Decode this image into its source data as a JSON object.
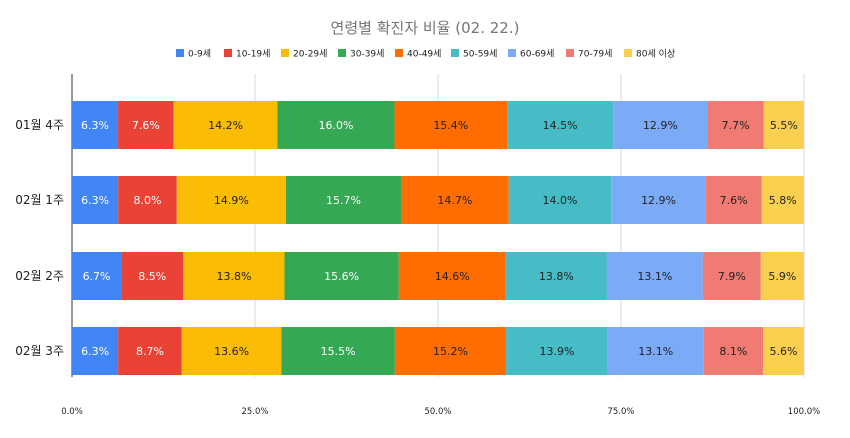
{
  "chart_data": {
    "type": "bar",
    "orientation": "horizontal",
    "stacked": "percent",
    "title": "연령별 확진자 비율 (02. 22.)",
    "xlabel": "",
    "ylabel": "",
    "xlim": [
      0,
      100
    ],
    "x_ticks": [
      "0.0%",
      "25.0%",
      "50.0%",
      "75.0%",
      "100.0%"
    ],
    "grid": true,
    "legend_position": "top",
    "categories": [
      "01월 4주",
      "02월 1주",
      "02월 2주",
      "02월 3주"
    ],
    "series": [
      {
        "name": "0-9세",
        "color": "#4285F4",
        "label_color": "#ffffff",
        "values": [
          6.3,
          6.3,
          6.7,
          6.3
        ]
      },
      {
        "name": "10-19세",
        "color": "#EA4335",
        "label_color": "#ffffff",
        "values": [
          7.6,
          8.0,
          8.5,
          8.7
        ]
      },
      {
        "name": "20-29세",
        "color": "#FBBC04",
        "label_color": "#222222",
        "values": [
          14.2,
          14.9,
          13.8,
          13.6
        ]
      },
      {
        "name": "30-39세",
        "color": "#34A853",
        "label_color": "#ffffff",
        "values": [
          16.0,
          15.7,
          15.6,
          15.5
        ]
      },
      {
        "name": "40-49세",
        "color": "#FF6D01",
        "label_color": "#222222",
        "values": [
          15.4,
          14.7,
          14.6,
          15.2
        ]
      },
      {
        "name": "50-59세",
        "color": "#46BDC6",
        "label_color": "#222222",
        "values": [
          14.5,
          14.0,
          13.8,
          13.9
        ]
      },
      {
        "name": "60-69세",
        "color": "#7BAAF7",
        "label_color": "#222222",
        "values": [
          12.9,
          12.9,
          13.1,
          13.1
        ]
      },
      {
        "name": "70-79세",
        "color": "#F07B72",
        "label_color": "#222222",
        "values": [
          7.7,
          7.6,
          7.9,
          8.1
        ]
      },
      {
        "name": "80세 이상",
        "color": "#FCD04F",
        "label_color": "#222222",
        "values": [
          5.5,
          5.8,
          5.9,
          5.6
        ]
      }
    ]
  }
}
